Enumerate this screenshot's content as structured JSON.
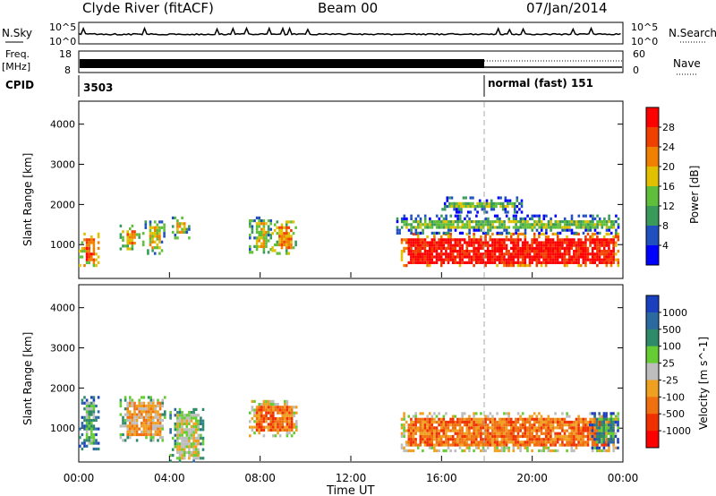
{
  "header": {
    "station": "Clyde River (fitACF)",
    "beam": "Beam 00",
    "date": "07/Jan/2014"
  },
  "noise_panel": {
    "left_label": "N.Sky",
    "right_label": "N.Search",
    "left_ticks": [
      "10^5",
      "10^0"
    ],
    "right_ticks": [
      "10^5",
      "10^0"
    ]
  },
  "freq_panel": {
    "left_label_line1": "Freq.",
    "left_label_line2": "[MHz]",
    "left_ticks": [
      "18",
      "8"
    ],
    "right_label": "Nave",
    "right_ticks": [
      "60",
      "0"
    ]
  },
  "cpid_panel": {
    "label": "CPID",
    "segments": [
      {
        "text": "3503",
        "start_hour": 0
      },
      {
        "text": "normal (fast) 151",
        "start_hour": 18
      }
    ]
  },
  "power_panel": {
    "ylabel": "Slant Range [km]",
    "y_ticks": [
      "4000",
      "3000",
      "2000",
      "1000"
    ],
    "colorbar_label": "Power [dB]",
    "colorbar_ticks": [
      "28",
      "24",
      "20",
      "16",
      "12",
      "8",
      "4"
    ],
    "colors": [
      "#0000ff",
      "#2050c0",
      "#3a9a5a",
      "#5fbf3a",
      "#e0c000",
      "#f08000",
      "#f04000",
      "#ff0000"
    ]
  },
  "velocity_panel": {
    "ylabel": "Slant Range [km]",
    "y_ticks": [
      "4000",
      "3000",
      "2000",
      "1000"
    ],
    "colorbar_label": "Velocity [m s^-1]",
    "colorbar_ticks": [
      "1000",
      "500",
      "100",
      "25",
      "-25",
      "-100",
      "-500",
      "-1000"
    ],
    "colors": [
      "#1a3fbf",
      "#2a6aa0",
      "#2f8a6a",
      "#66cc33",
      "#bdbdbd",
      "#f0a020",
      "#f07010",
      "#f03000",
      "#ff0000"
    ]
  },
  "x_axis": {
    "label": "Time UT",
    "ticks": [
      "00:00",
      "04:00",
      "08:00",
      "12:00",
      "16:00",
      "20:00",
      "00:00"
    ]
  },
  "chart_data": {
    "type": "heatmap",
    "x_range_hours": [
      0,
      24
    ],
    "y_range_km": [
      180,
      4550
    ],
    "mode_change_hour": 18,
    "power_blobs": [
      {
        "t0": 0.0,
        "t1": 0.9,
        "r0": 500,
        "r1": 1300,
        "level": 6
      },
      {
        "t0": 1.8,
        "t1": 2.7,
        "r0": 900,
        "r1": 1500,
        "level": 5
      },
      {
        "t0": 2.8,
        "t1": 3.8,
        "r0": 800,
        "r1": 1600,
        "level": 4
      },
      {
        "t0": 4.0,
        "t1": 4.9,
        "r0": 1200,
        "r1": 1700,
        "level": 4
      },
      {
        "t0": 7.5,
        "t1": 8.5,
        "r0": 800,
        "r1": 1700,
        "level": 4
      },
      {
        "t0": 8.5,
        "t1": 9.6,
        "r0": 800,
        "r1": 1600,
        "level": 5
      },
      {
        "t0": 14.2,
        "t1": 23.8,
        "r0": 450,
        "r1": 1300,
        "level": 7
      },
      {
        "t0": 14.0,
        "t1": 23.8,
        "r0": 1300,
        "r1": 1750,
        "level": 3
      },
      {
        "t0": 16.0,
        "t1": 19.5,
        "r0": 1800,
        "r1": 2200,
        "level": 3
      }
    ],
    "velocity_blobs": [
      {
        "t0": 0.0,
        "t1": 0.9,
        "r0": 500,
        "r1": 1800,
        "level": 3
      },
      {
        "t0": 1.8,
        "t1": 3.8,
        "r0": 700,
        "r1": 1800,
        "level": 5
      },
      {
        "t0": 4.0,
        "t1": 5.5,
        "r0": 150,
        "r1": 1500,
        "level": 4
      },
      {
        "t0": 7.5,
        "t1": 9.6,
        "r0": 800,
        "r1": 1700,
        "level": 6
      },
      {
        "t0": 14.2,
        "t1": 23.8,
        "r0": 450,
        "r1": 1400,
        "level": 6
      },
      {
        "t0": 22.5,
        "t1": 23.8,
        "r0": 500,
        "r1": 1400,
        "level": 2
      }
    ]
  }
}
